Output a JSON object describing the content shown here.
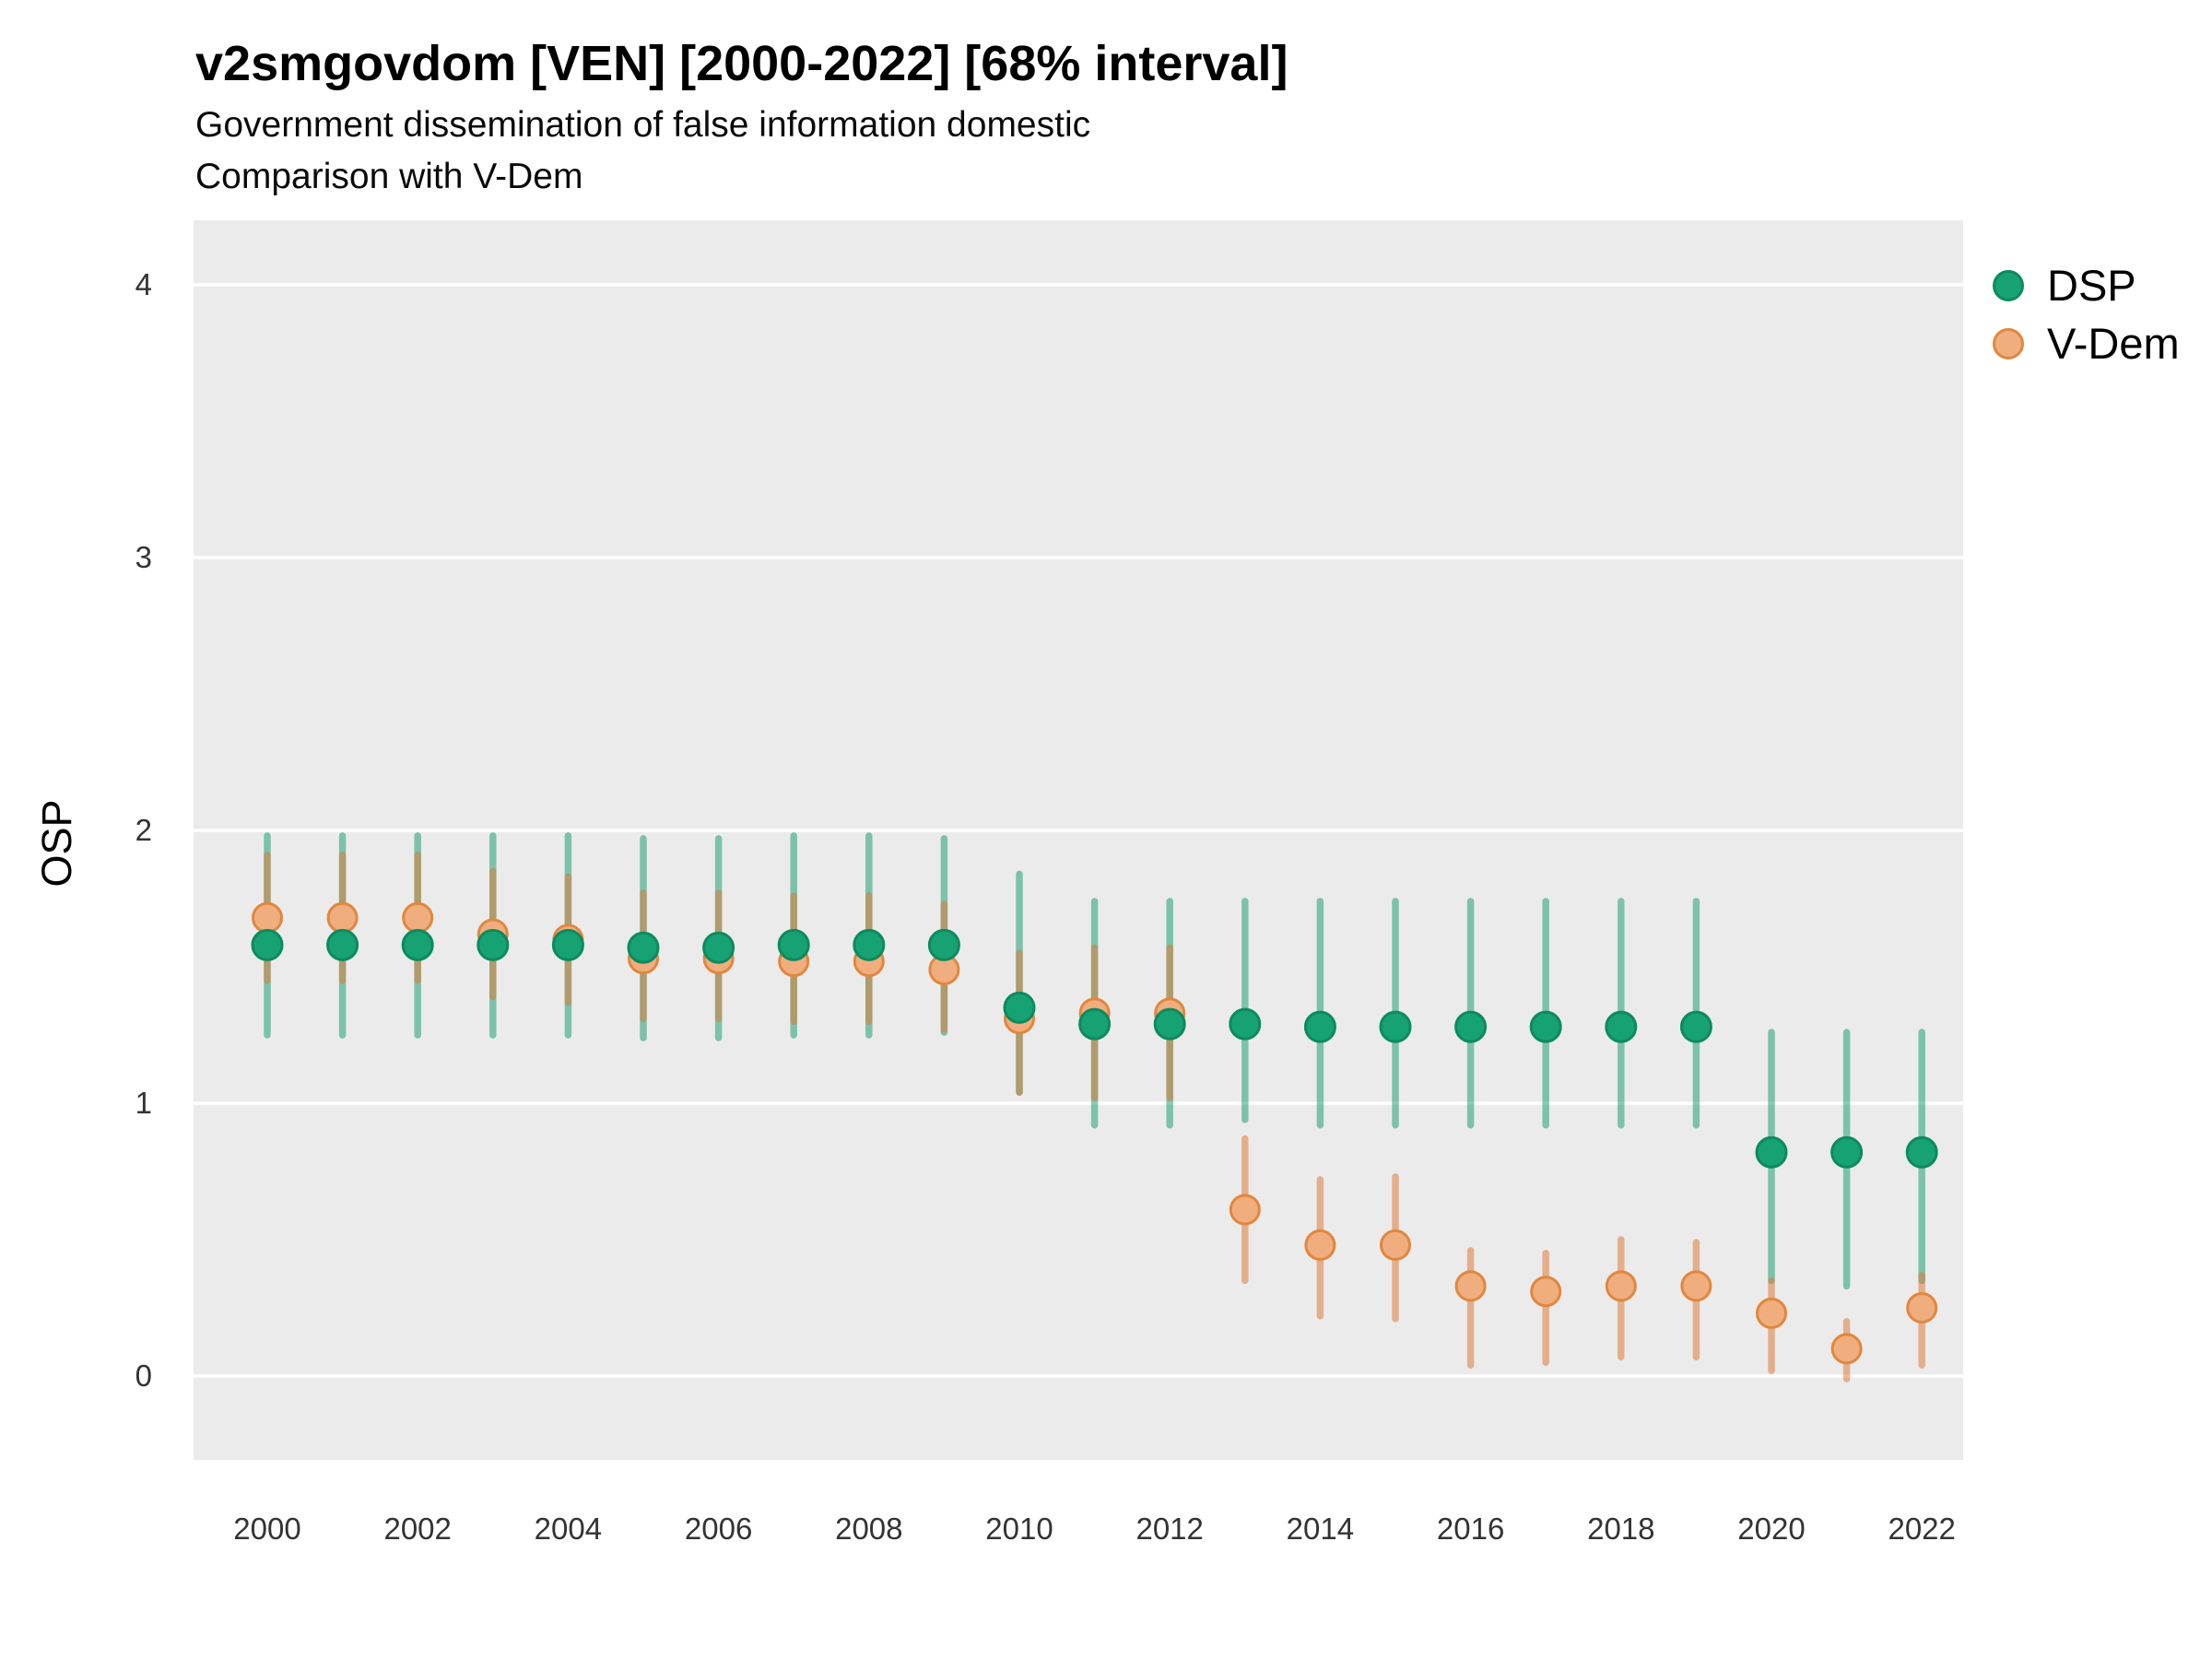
{
  "header": {
    "title": "v2smgovdom [VEN] [2000-2022] [68% interval]",
    "subtitle1": "Government dissemination of false information domestic",
    "subtitle2": "Comparison with V-Dem"
  },
  "chart_data": {
    "type": "scatter",
    "title": "v2smgovdom [VEN] [2000-2022] [68% interval]",
    "subtitle": [
      "Government dissemination of false information domestic",
      "Comparison with V-Dem"
    ],
    "interval": "68%",
    "ylabel": "OSP",
    "ylim": [
      -0.31,
      4.24
    ],
    "grid": "major-horizontal-only",
    "legend_position": "top-right",
    "panel_background": "#EBEBEB",
    "gridline_color": "#FFFFFF",
    "x": [
      2000,
      2001,
      2002,
      2003,
      2004,
      2005,
      2006,
      2007,
      2008,
      2009,
      2010,
      2011,
      2012,
      2013,
      2014,
      2015,
      2016,
      2017,
      2018,
      2019,
      2020,
      2021,
      2022
    ],
    "x_ticks": [
      2000,
      2002,
      2004,
      2006,
      2008,
      2010,
      2012,
      2014,
      2016,
      2018,
      2020,
      2022
    ],
    "y_ticks": [
      0,
      1,
      2,
      3,
      4
    ],
    "series": [
      {
        "name": "DSP",
        "dot_color": "#17a273",
        "dot_stroke": "#0d8a5f",
        "interval_color": "rgba(23,158,112,0.52)",
        "est": [
          1.58,
          1.58,
          1.58,
          1.58,
          1.58,
          1.57,
          1.57,
          1.58,
          1.58,
          1.58,
          1.35,
          1.29,
          1.29,
          1.29,
          1.28,
          1.28,
          1.28,
          1.28,
          1.28,
          1.28,
          0.82,
          0.82,
          0.82
        ],
        "lo": [
          1.25,
          1.25,
          1.25,
          1.25,
          1.25,
          1.24,
          1.24,
          1.25,
          1.25,
          1.26,
          1.04,
          0.92,
          0.92,
          0.94,
          0.92,
          0.92,
          0.92,
          0.92,
          0.92,
          0.92,
          0.35,
          0.33,
          0.35
        ],
        "hi": [
          1.98,
          1.98,
          1.98,
          1.98,
          1.98,
          1.97,
          1.97,
          1.98,
          1.98,
          1.97,
          1.84,
          1.74,
          1.74,
          1.74,
          1.74,
          1.74,
          1.74,
          1.74,
          1.74,
          1.74,
          1.26,
          1.26,
          1.26
        ]
      },
      {
        "name": "V-Dem",
        "dot_color": "#f0ae7e",
        "dot_stroke": "#e0873f",
        "interval_color": "rgba(222,119,51,0.52)",
        "est": [
          1.68,
          1.68,
          1.68,
          1.62,
          1.6,
          1.53,
          1.53,
          1.52,
          1.52,
          1.49,
          1.31,
          1.33,
          1.33,
          0.61,
          0.48,
          0.48,
          0.33,
          0.31,
          0.33,
          0.33,
          0.23,
          0.1,
          0.25
        ],
        "lo": [
          1.45,
          1.45,
          1.45,
          1.39,
          1.37,
          1.31,
          1.31,
          1.3,
          1.3,
          1.27,
          1.04,
          1.02,
          1.02,
          0.35,
          0.22,
          0.21,
          0.04,
          0.05,
          0.07,
          0.07,
          0.02,
          -0.01,
          0.04
        ],
        "hi": [
          1.91,
          1.91,
          1.91,
          1.85,
          1.83,
          1.77,
          1.77,
          1.76,
          1.76,
          1.73,
          1.55,
          1.57,
          1.57,
          0.87,
          0.72,
          0.73,
          0.46,
          0.45,
          0.5,
          0.49,
          0.35,
          0.2,
          0.37
        ]
      }
    ]
  }
}
